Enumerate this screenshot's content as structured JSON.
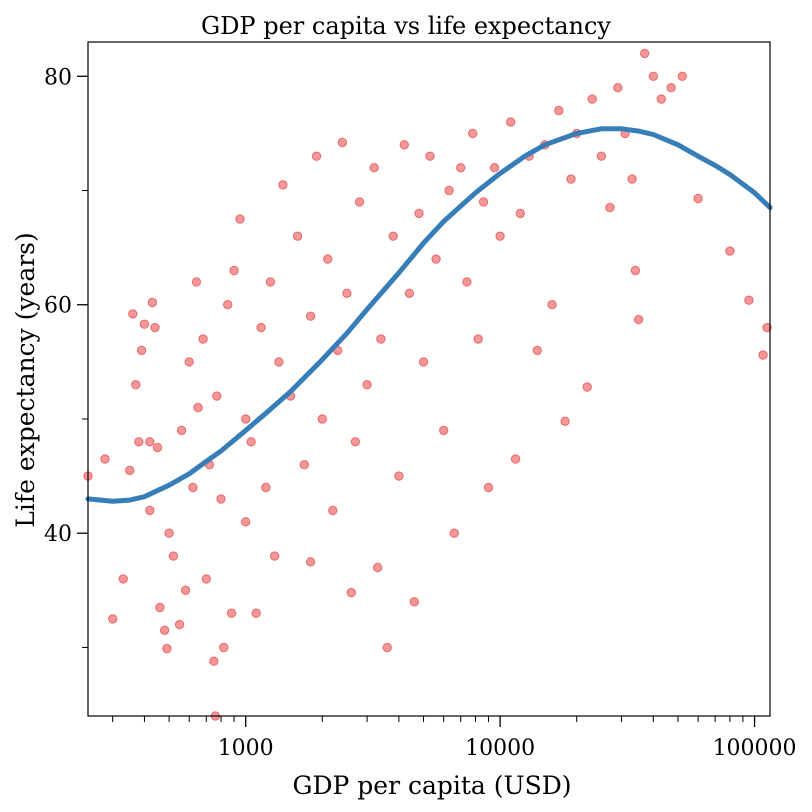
{
  "chart_data": {
    "type": "scatter",
    "title": "GDP per capita vs life expectancy",
    "xlabel": "GDP per capita (USD)",
    "ylabel": "Life expectancy (years)",
    "x_scale": "log",
    "xlim": [
      240,
      115000
    ],
    "ylim": [
      24,
      83
    ],
    "x_ticks": [
      {
        "value": 1000,
        "label": "1000"
      },
      {
        "value": 10000,
        "label": "10000"
      },
      {
        "value": 100000,
        "label": "100000"
      }
    ],
    "y_ticks": [
      {
        "value": 40,
        "label": "40"
      },
      {
        "value": 60,
        "label": "60"
      },
      {
        "value": 80,
        "label": "80"
      }
    ],
    "y_minor_ticks": [
      30,
      50,
      70
    ],
    "grid": false,
    "legend": "none",
    "colors": {
      "points": "#e41a1c",
      "trend": "#377eb8"
    },
    "series": [
      {
        "kind": "scatter",
        "points": [
          [
            240,
            45.0
          ],
          [
            280,
            46.5
          ],
          [
            300,
            32.5
          ],
          [
            330,
            36.0
          ],
          [
            350,
            45.5
          ],
          [
            360,
            59.2
          ],
          [
            370,
            53.0
          ],
          [
            380,
            48.0
          ],
          [
            390,
            56.0
          ],
          [
            400,
            58.3
          ],
          [
            420,
            48.0
          ],
          [
            420,
            42.0
          ],
          [
            430,
            60.2
          ],
          [
            440,
            58.0
          ],
          [
            450,
            47.5
          ],
          [
            460,
            33.5
          ],
          [
            480,
            31.5
          ],
          [
            490,
            29.9
          ],
          [
            500,
            40.0
          ],
          [
            520,
            38.0
          ],
          [
            550,
            32.0
          ],
          [
            560,
            49.0
          ],
          [
            580,
            35.0
          ],
          [
            600,
            55.0
          ],
          [
            620,
            44.0
          ],
          [
            640,
            62.0
          ],
          [
            650,
            51.0
          ],
          [
            680,
            57.0
          ],
          [
            700,
            36.0
          ],
          [
            720,
            46.0
          ],
          [
            750,
            28.8
          ],
          [
            760,
            24.0
          ],
          [
            770,
            52.0
          ],
          [
            800,
            43.0
          ],
          [
            820,
            30.0
          ],
          [
            850,
            60.0
          ],
          [
            880,
            33.0
          ],
          [
            900,
            63.0
          ],
          [
            950,
            67.5
          ],
          [
            1000,
            50.0
          ],
          [
            1000,
            41.0
          ],
          [
            1050,
            48.0
          ],
          [
            1100,
            33.0
          ],
          [
            1150,
            58.0
          ],
          [
            1200,
            44.0
          ],
          [
            1250,
            62.0
          ],
          [
            1300,
            38.0
          ],
          [
            1350,
            55.0
          ],
          [
            1400,
            70.5
          ],
          [
            1500,
            52.0
          ],
          [
            1600,
            66.0
          ],
          [
            1700,
            46.0
          ],
          [
            1800,
            37.5
          ],
          [
            1800,
            59.0
          ],
          [
            1900,
            73.0
          ],
          [
            2000,
            50.0
          ],
          [
            2100,
            64.0
          ],
          [
            2200,
            42.0
          ],
          [
            2300,
            56.0
          ],
          [
            2400,
            74.2
          ],
          [
            2500,
            61.0
          ],
          [
            2600,
            34.8
          ],
          [
            2700,
            48.0
          ],
          [
            2800,
            69.0
          ],
          [
            3000,
            53.0
          ],
          [
            3200,
            72.0
          ],
          [
            3300,
            37.0
          ],
          [
            3400,
            57.0
          ],
          [
            3600,
            30.0
          ],
          [
            3800,
            66.0
          ],
          [
            4000,
            45.0
          ],
          [
            4200,
            74.0
          ],
          [
            4400,
            61.0
          ],
          [
            4600,
            34.0
          ],
          [
            4800,
            68.0
          ],
          [
            5000,
            55.0
          ],
          [
            5300,
            73.0
          ],
          [
            5600,
            64.0
          ],
          [
            6000,
            49.0
          ],
          [
            6300,
            70.0
          ],
          [
            6600,
            40.0
          ],
          [
            7000,
            72.0
          ],
          [
            7400,
            62.0
          ],
          [
            7800,
            75.0
          ],
          [
            8200,
            57.0
          ],
          [
            8600,
            69.0
          ],
          [
            9000,
            44.0
          ],
          [
            9500,
            72.0
          ],
          [
            10000,
            66.0
          ],
          [
            11000,
            76.0
          ],
          [
            11500,
            46.5
          ],
          [
            12000,
            68.0
          ],
          [
            13000,
            73.0
          ],
          [
            14000,
            56.0
          ],
          [
            15000,
            74.0
          ],
          [
            16000,
            60.0
          ],
          [
            17000,
            77.0
          ],
          [
            18000,
            49.8
          ],
          [
            19000,
            71.0
          ],
          [
            20000,
            75.0
          ],
          [
            22000,
            52.8
          ],
          [
            23000,
            78.0
          ],
          [
            25000,
            73.0
          ],
          [
            27000,
            68.5
          ],
          [
            29000,
            79.0
          ],
          [
            31000,
            75.0
          ],
          [
            33000,
            71.0
          ],
          [
            34000,
            63.0
          ],
          [
            35000,
            58.7
          ],
          [
            37000,
            82.0
          ],
          [
            40000,
            80.0
          ],
          [
            43000,
            78.0
          ],
          [
            47000,
            79.0
          ],
          [
            52000,
            80.0
          ],
          [
            60000,
            69.3
          ],
          [
            80000,
            64.7
          ],
          [
            95000,
            60.4
          ],
          [
            108000,
            55.6
          ],
          [
            112000,
            58.0
          ]
        ]
      },
      {
        "kind": "line",
        "name": "",
        "x": [
          240,
          300,
          350,
          400,
          500,
          600,
          700,
          800,
          1000,
          1200,
          1500,
          2000,
          2500,
          3000,
          4000,
          5000,
          6000,
          8000,
          10000,
          12500,
          15000,
          20000,
          25000,
          30000,
          35000,
          40000,
          50000,
          60000,
          70000,
          80000,
          100000,
          115000
        ],
        "y": [
          43.0,
          42.8,
          42.9,
          43.2,
          44.2,
          45.2,
          46.3,
          47.2,
          49.0,
          50.5,
          52.4,
          55.2,
          57.5,
          59.6,
          62.8,
          65.4,
          67.3,
          69.8,
          71.5,
          73.0,
          74.0,
          75.0,
          75.4,
          75.4,
          75.2,
          74.9,
          74.0,
          73.0,
          72.2,
          71.4,
          69.8,
          68.5
        ]
      }
    ]
  }
}
